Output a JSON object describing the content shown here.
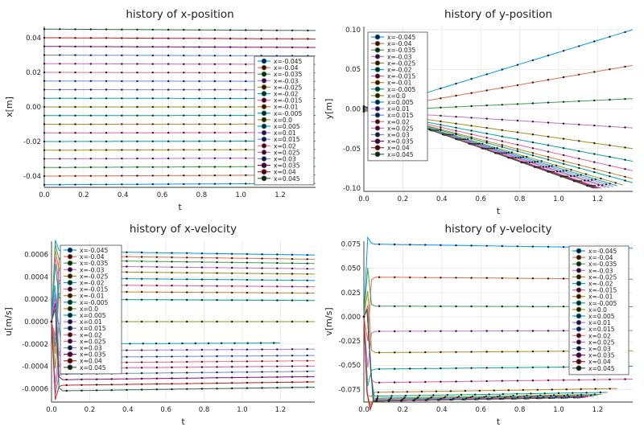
{
  "legend_labels": [
    "x=-0.045",
    "x=-0.04",
    "x=-0.035",
    "x=-0.03",
    "x=-0.025",
    "x=-0.02",
    "x=-0.015",
    "x=-0.01",
    "x=-0.005",
    "x=0.0",
    "x=0.005",
    "x=0.01",
    "x=0.015",
    "x=0.02",
    "x=0.025",
    "x=0.03",
    "x=0.035",
    "x=0.04",
    "x=0.045"
  ],
  "series_colors": [
    "#009AFA",
    "#E36F47",
    "#3EA44E",
    "#C371D2",
    "#AC8E18",
    "#00AAAE",
    "#ED5E93",
    "#C68225",
    "#00A98D",
    "#8E971E",
    "#00A9CD",
    "#9B7FE9",
    "#618DF6",
    "#F16C7F",
    "#DD64B5",
    "#6A89D3",
    "#9C0A7E",
    "#CA2020",
    "#2E6B43"
  ],
  "chart_data": [
    {
      "type": "line",
      "title": "history of x-position",
      "xlabel": "t",
      "ylabel": "x[m]",
      "xlim": [
        0.0,
        1.38
      ],
      "ylim": [
        -0.0465,
        0.0465
      ],
      "xticks": [
        0.0,
        0.2,
        0.4,
        0.6,
        0.8,
        1.0,
        1.2
      ],
      "xticklabels": [
        "0.0",
        "0.2",
        "0.4",
        "0.6",
        "0.8",
        "1.0",
        "1.2"
      ],
      "yticks": [
        -0.04,
        -0.02,
        0.0,
        0.02,
        0.04
      ],
      "yticklabels": [
        "-0.04",
        "-0.02",
        "0.00",
        "0.02",
        "0.04"
      ],
      "legend": "right",
      "grid": true,
      "series_start": [
        -0.045,
        -0.04,
        -0.035,
        -0.03,
        -0.025,
        -0.02,
        -0.015,
        -0.01,
        -0.005,
        0.0,
        0.005,
        0.01,
        0.015,
        0.02,
        0.025,
        0.03,
        0.035,
        0.04,
        0.045
      ],
      "series_end": [
        -0.0442,
        -0.0393,
        -0.0344,
        -0.0295,
        -0.0246,
        -0.0197,
        -0.0148,
        -0.0099,
        -0.0049,
        0.0,
        0.0049,
        0.0099,
        0.0148,
        0.0197,
        0.0246,
        0.0295,
        0.0344,
        0.0393,
        0.0442
      ]
    },
    {
      "type": "line",
      "title": "history of y-position",
      "xlabel": "t",
      "ylabel": "y[m]",
      "xlim": [
        0.0,
        1.38
      ],
      "ylim": [
        -0.104,
        0.104
      ],
      "xticks": [
        0.0,
        0.2,
        0.4,
        0.6,
        0.8,
        1.0,
        1.2
      ],
      "xticklabels": [
        "0.0",
        "0.2",
        "0.4",
        "0.6",
        "0.8",
        "1.0",
        "1.2"
      ],
      "yticks": [
        -0.1,
        -0.05,
        0.0,
        0.05,
        0.1
      ],
      "yticklabels": [
        "-0.10",
        "-0.05",
        "0.00",
        "0.05",
        "0.10"
      ],
      "legend": "top-left",
      "grid": true,
      "series_end": [
        0.1,
        0.055,
        0.013,
        -0.024,
        -0.05,
        -0.066,
        -0.078,
        -0.088,
        -0.093,
        -0.096,
        -0.097,
        -0.098,
        -0.099,
        -0.099,
        -0.1,
        -0.1,
        -0.1,
        -0.1,
        -0.1
      ],
      "series_tmax": [
        1.38,
        1.38,
        1.38,
        1.38,
        1.38,
        1.38,
        1.38,
        1.38,
        1.38,
        1.33,
        1.3,
        1.28,
        1.26,
        1.24,
        1.22,
        1.21,
        1.2,
        1.19,
        1.18
      ]
    },
    {
      "type": "line",
      "title": "history of x-velocity",
      "xlabel": "t",
      "ylabel": "u[m/s]",
      "xlim": [
        0.0,
        1.38
      ],
      "ylim": [
        -0.00072,
        0.00072
      ],
      "xticks": [
        0.0,
        0.2,
        0.4,
        0.6,
        0.8,
        1.0,
        1.2
      ],
      "xticklabels": [
        "0.0",
        "0.2",
        "0.4",
        "0.6",
        "0.8",
        "1.0",
        "1.2"
      ],
      "yticks": [
        -0.0006,
        -0.0004,
        -0.0002,
        0.0,
        0.0002,
        0.0004,
        0.0006
      ],
      "yticklabels": [
        "-0.0006",
        "-0.0004",
        "-0.0002",
        "0.0000",
        "0.0002",
        "0.0004",
        "0.0006"
      ],
      "legend": "top-left",
      "grid": true,
      "series_level": [
        0.00063,
        0.00059,
        0.00055,
        0.0005,
        0.00045,
        0.00039,
        0.00033,
        0.00027,
        0.0002,
        0.0,
        -0.0002,
        -0.00026,
        -0.00032,
        -0.00037,
        -0.00042,
        -0.00047,
        -0.00052,
        -0.00057,
        -0.00062
      ],
      "series_tmax": [
        1.38,
        1.38,
        1.38,
        1.38,
        1.38,
        1.38,
        1.38,
        1.38,
        1.38,
        1.38,
        1.2,
        1.38,
        1.38,
        1.38,
        1.38,
        1.38,
        1.38,
        1.38,
        1.38
      ]
    },
    {
      "type": "line",
      "title": "history of y-velocity",
      "xlabel": "t",
      "ylabel": "v[m/s]",
      "xlim": [
        0.0,
        1.38
      ],
      "ylim": [
        -0.088,
        0.078
      ],
      "xticks": [
        0.0,
        0.2,
        0.4,
        0.6,
        0.8,
        1.0,
        1.2
      ],
      "xticklabels": [
        "0.0",
        "0.2",
        "0.4",
        "0.6",
        "0.8",
        "1.0",
        "1.2"
      ],
      "yticks": [
        -0.075,
        -0.05,
        -0.025,
        0.0,
        0.025,
        0.05,
        0.075
      ],
      "yticklabels": [
        "-0.075",
        "-0.050",
        "-0.025",
        "0.000",
        "0.025",
        "0.050",
        "0.075"
      ],
      "legend": "top-right",
      "grid": true,
      "series_level": [
        0.075,
        0.041,
        0.011,
        -0.015,
        -0.037,
        -0.054,
        -0.068,
        -0.078,
        -0.082,
        -0.084,
        -0.085,
        -0.086,
        -0.086,
        -0.086,
        -0.086,
        -0.087,
        -0.087,
        -0.087,
        -0.087
      ],
      "series_tmax": [
        1.38,
        1.38,
        1.38,
        1.38,
        1.38,
        1.38,
        1.38,
        1.3,
        1.25,
        1.22,
        1.2,
        1.18,
        1.17,
        1.16,
        1.15,
        1.14,
        1.13,
        1.12,
        1.11
      ]
    }
  ]
}
